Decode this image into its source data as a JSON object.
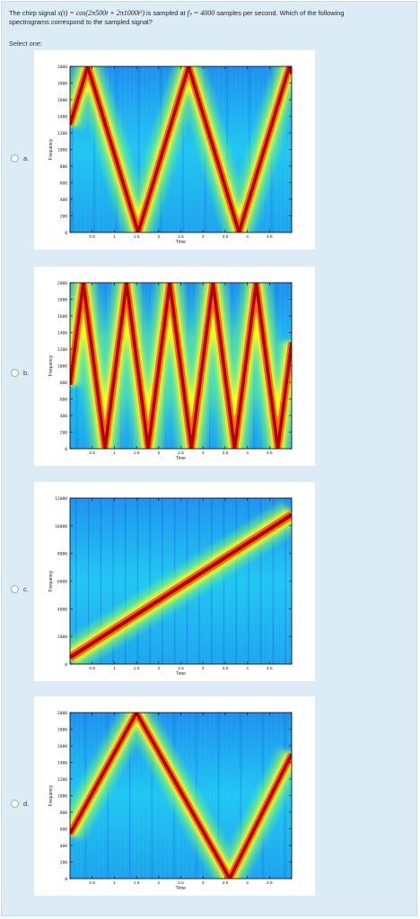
{
  "question": {
    "prefix": "The chirp signal",
    "signal_expr": "x(t) = cos(2π500t + 2π1000t²)",
    "middle": "is sampled at",
    "rate_expr": "fₛ = 4000",
    "suffix": "samples per second. Which of the following",
    "line2": "spectrograms correspond to the sampled signal?"
  },
  "select_label": "Select one:",
  "options": [
    {
      "letter": "a.",
      "selected": false,
      "yticks": [
        "2000",
        "1800",
        "1600",
        "1400",
        "1200",
        "1000",
        "800",
        "600",
        "400",
        "200",
        "0"
      ],
      "ymax": 2000,
      "pattern": "triangle-2peaks"
    },
    {
      "letter": "b.",
      "selected": false,
      "yticks": [
        "2000",
        "1800",
        "1600",
        "1400",
        "1200",
        "1000",
        "800",
        "600",
        "400",
        "200",
        "0"
      ],
      "ymax": 2000,
      "pattern": "triangle-5peaks"
    },
    {
      "letter": "c.",
      "selected": false,
      "yticks": [
        "12000",
        "10000",
        "8000",
        "6000",
        "4000",
        "2000",
        "0"
      ],
      "ymax": 12000,
      "pattern": "linear-rise"
    },
    {
      "letter": "d.",
      "selected": false,
      "yticks": [
        "2000",
        "1800",
        "1600",
        "1400",
        "1200",
        "1000",
        "800",
        "600",
        "400",
        "200",
        "0"
      ],
      "ymax": 2000,
      "pattern": "triangle-1peak"
    }
  ],
  "xticks": [
    "0.5",
    "1",
    "1.5",
    "2",
    "2.5",
    "3",
    "3.5",
    "4",
    "4.5"
  ],
  "xlabel": "Time",
  "ylabel": "Frequency",
  "colors": {
    "background": "#1da8ee",
    "line": "#b00000",
    "glow": "#ffff00"
  }
}
